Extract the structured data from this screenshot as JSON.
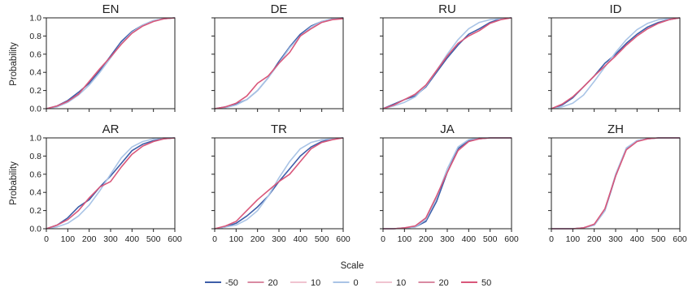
{
  "figure": {
    "xlabel": "Scale",
    "ylabel": "Probability"
  },
  "chart_data": {
    "type": "line",
    "layout": "2x4 small multiples",
    "xlim": [
      0,
      600
    ],
    "ylim": [
      0,
      1
    ],
    "xticks": [
      0,
      100,
      200,
      300,
      400,
      500,
      600
    ],
    "yticks": [
      0.0,
      0.2,
      0.4,
      0.6,
      0.8,
      1.0
    ],
    "grid": false,
    "legend_position": "bottom-center",
    "series_styles": [
      {
        "name": "-50",
        "color": "#3d5ea8"
      },
      {
        "name": "20",
        "color": "#d98aa2"
      },
      {
        "name": "10",
        "color": "#f0c4d0"
      },
      {
        "name": "0",
        "color": "#a9c4e6"
      },
      {
        "name": "10",
        "color": "#f0c4d0"
      },
      {
        "name": "20",
        "color": "#d98aa2"
      },
      {
        "name": "50",
        "color": "#d9577a"
      }
    ],
    "panels": [
      {
        "title": "EN",
        "series": [
          {
            "name": "-50",
            "x": [
              0,
              50,
              100,
              150,
              200,
              250,
              300,
              350,
              400,
              450,
              500,
              550,
              600
            ],
            "y": [
              0.0,
              0.03,
              0.09,
              0.18,
              0.28,
              0.42,
              0.58,
              0.74,
              0.85,
              0.92,
              0.97,
              0.99,
              1.0
            ]
          },
          {
            "name": "0",
            "x": [
              0,
              50,
              100,
              150,
              200,
              250,
              300,
              350,
              400,
              450,
              500,
              550,
              600
            ],
            "y": [
              0.0,
              0.02,
              0.07,
              0.15,
              0.26,
              0.4,
              0.56,
              0.72,
              0.84,
              0.92,
              0.97,
              0.99,
              1.0
            ]
          },
          {
            "name": "50",
            "x": [
              0,
              50,
              100,
              150,
              200,
              250,
              300,
              350,
              400,
              450,
              500,
              550,
              600
            ],
            "y": [
              0.0,
              0.03,
              0.08,
              0.16,
              0.3,
              0.44,
              0.57,
              0.71,
              0.83,
              0.91,
              0.96,
              0.99,
              1.0
            ]
          }
        ]
      },
      {
        "title": "DE",
        "series": [
          {
            "name": "-50",
            "x": [
              0,
              50,
              100,
              150,
              200,
              250,
              300,
              350,
              400,
              450,
              500,
              550,
              600
            ],
            "y": [
              0.0,
              0.02,
              0.05,
              0.1,
              0.2,
              0.34,
              0.52,
              0.68,
              0.82,
              0.91,
              0.96,
              0.99,
              1.0
            ]
          },
          {
            "name": "0",
            "x": [
              0,
              50,
              100,
              150,
              200,
              250,
              300,
              350,
              400,
              450,
              500,
              550,
              600
            ],
            "y": [
              0.0,
              0.01,
              0.04,
              0.1,
              0.2,
              0.34,
              0.5,
              0.67,
              0.8,
              0.9,
              0.96,
              0.99,
              1.0
            ]
          },
          {
            "name": "50",
            "x": [
              0,
              50,
              100,
              150,
              200,
              250,
              300,
              350,
              400,
              450,
              500,
              550,
              600
            ],
            "y": [
              0.0,
              0.02,
              0.06,
              0.14,
              0.28,
              0.36,
              0.5,
              0.62,
              0.8,
              0.88,
              0.95,
              0.98,
              0.99
            ]
          }
        ]
      },
      {
        "title": "RU",
        "series": [
          {
            "name": "-50",
            "x": [
              0,
              50,
              100,
              150,
              200,
              250,
              300,
              350,
              400,
              450,
              500,
              550,
              600
            ],
            "y": [
              0.0,
              0.05,
              0.1,
              0.14,
              0.24,
              0.4,
              0.56,
              0.7,
              0.82,
              0.88,
              0.95,
              0.99,
              1.0
            ]
          },
          {
            "name": "0",
            "x": [
              0,
              50,
              100,
              150,
              200,
              250,
              300,
              350,
              400,
              450,
              500,
              550,
              600
            ],
            "y": [
              0.0,
              0.03,
              0.07,
              0.13,
              0.25,
              0.42,
              0.6,
              0.76,
              0.88,
              0.95,
              0.98,
              0.99,
              1.0
            ]
          },
          {
            "name": "50",
            "x": [
              0,
              50,
              100,
              150,
              200,
              250,
              300,
              350,
              400,
              450,
              500,
              550,
              600
            ],
            "y": [
              0.0,
              0.04,
              0.1,
              0.16,
              0.26,
              0.42,
              0.58,
              0.72,
              0.8,
              0.86,
              0.94,
              0.98,
              1.0
            ]
          }
        ]
      },
      {
        "title": "ID",
        "series": [
          {
            "name": "-50",
            "x": [
              0,
              50,
              100,
              150,
              200,
              250,
              300,
              350,
              400,
              450,
              500,
              550,
              600
            ],
            "y": [
              0.0,
              0.04,
              0.12,
              0.24,
              0.36,
              0.5,
              0.6,
              0.72,
              0.82,
              0.9,
              0.95,
              0.98,
              1.0
            ]
          },
          {
            "name": "0",
            "x": [
              0,
              50,
              100,
              150,
              200,
              250,
              300,
              350,
              400,
              450,
              500,
              550,
              600
            ],
            "y": [
              0.0,
              0.02,
              0.06,
              0.15,
              0.3,
              0.46,
              0.62,
              0.76,
              0.87,
              0.94,
              0.98,
              0.99,
              1.0
            ]
          },
          {
            "name": "50",
            "x": [
              0,
              50,
              100,
              150,
              200,
              250,
              300,
              350,
              400,
              450,
              500,
              550,
              600
            ],
            "y": [
              0.0,
              0.05,
              0.13,
              0.24,
              0.36,
              0.47,
              0.58,
              0.7,
              0.8,
              0.88,
              0.94,
              0.98,
              1.0
            ]
          }
        ]
      },
      {
        "title": "AR",
        "series": [
          {
            "name": "-50",
            "x": [
              0,
              50,
              100,
              150,
              200,
              250,
              300,
              350,
              400,
              450,
              500,
              550,
              600
            ],
            "y": [
              0.0,
              0.04,
              0.12,
              0.24,
              0.32,
              0.46,
              0.58,
              0.72,
              0.86,
              0.93,
              0.97,
              0.99,
              1.0
            ]
          },
          {
            "name": "0",
            "x": [
              0,
              50,
              100,
              150,
              200,
              250,
              300,
              350,
              400,
              450,
              500,
              550,
              600
            ],
            "y": [
              0.0,
              0.02,
              0.06,
              0.14,
              0.26,
              0.42,
              0.6,
              0.78,
              0.9,
              0.96,
              0.99,
              1.0,
              1.0
            ]
          },
          {
            "name": "50",
            "x": [
              0,
              50,
              100,
              150,
              200,
              250,
              300,
              350,
              400,
              450,
              500,
              550,
              600
            ],
            "y": [
              0.0,
              0.04,
              0.1,
              0.2,
              0.34,
              0.46,
              0.52,
              0.68,
              0.82,
              0.91,
              0.96,
              0.99,
              1.0
            ]
          }
        ]
      },
      {
        "title": "TR",
        "series": [
          {
            "name": "-50",
            "x": [
              0,
              50,
              100,
              150,
              200,
              250,
              300,
              350,
              400,
              450,
              500,
              550,
              600
            ],
            "y": [
              0.0,
              0.02,
              0.06,
              0.14,
              0.24,
              0.36,
              0.52,
              0.66,
              0.8,
              0.9,
              0.96,
              0.99,
              1.0
            ]
          },
          {
            "name": "0",
            "x": [
              0,
              50,
              100,
              150,
              200,
              250,
              300,
              350,
              400,
              450,
              500,
              550,
              600
            ],
            "y": [
              0.0,
              0.02,
              0.04,
              0.1,
              0.2,
              0.36,
              0.56,
              0.74,
              0.88,
              0.95,
              0.98,
              0.99,
              1.0
            ]
          },
          {
            "name": "50",
            "x": [
              0,
              50,
              100,
              150,
              200,
              250,
              300,
              350,
              400,
              450,
              500,
              550,
              600
            ],
            "y": [
              0.0,
              0.03,
              0.08,
              0.2,
              0.32,
              0.42,
              0.52,
              0.6,
              0.74,
              0.88,
              0.95,
              0.98,
              1.0
            ]
          }
        ]
      },
      {
        "title": "JA",
        "series": [
          {
            "name": "-50",
            "x": [
              0,
              50,
              100,
              150,
              200,
              250,
              300,
              350,
              400,
              450,
              500,
              550,
              600
            ],
            "y": [
              0.0,
              0.0,
              0.01,
              0.02,
              0.08,
              0.3,
              0.62,
              0.88,
              0.97,
              0.99,
              1.0,
              1.0,
              1.0
            ]
          },
          {
            "name": "0",
            "x": [
              0,
              50,
              100,
              150,
              200,
              250,
              300,
              350,
              400,
              450,
              500,
              550,
              600
            ],
            "y": [
              0.0,
              0.0,
              0.01,
              0.02,
              0.1,
              0.34,
              0.66,
              0.9,
              0.98,
              1.0,
              1.0,
              1.0,
              1.0
            ]
          },
          {
            "name": "50",
            "x": [
              0,
              50,
              100,
              150,
              200,
              250,
              300,
              350,
              400,
              450,
              500,
              550,
              600
            ],
            "y": [
              0.0,
              0.0,
              0.01,
              0.03,
              0.12,
              0.36,
              0.62,
              0.86,
              0.96,
              0.99,
              1.0,
              1.0,
              1.0
            ]
          }
        ]
      },
      {
        "title": "ZH",
        "series": [
          {
            "name": "-50",
            "x": [
              0,
              50,
              100,
              150,
              200,
              250,
              300,
              350,
              400,
              450,
              500,
              550,
              600
            ],
            "y": [
              0.0,
              0.0,
              0.0,
              0.01,
              0.04,
              0.2,
              0.58,
              0.88,
              0.97,
              0.99,
              1.0,
              1.0,
              1.0
            ]
          },
          {
            "name": "0",
            "x": [
              0,
              50,
              100,
              150,
              200,
              250,
              300,
              350,
              400,
              450,
              500,
              550,
              600
            ],
            "y": [
              0.0,
              0.0,
              0.0,
              0.01,
              0.04,
              0.2,
              0.6,
              0.89,
              0.97,
              0.99,
              1.0,
              1.0,
              1.0
            ]
          },
          {
            "name": "50",
            "x": [
              0,
              50,
              100,
              150,
              200,
              250,
              300,
              350,
              400,
              450,
              500,
              550,
              600
            ],
            "y": [
              0.0,
              0.0,
              0.0,
              0.01,
              0.05,
              0.22,
              0.58,
              0.87,
              0.96,
              0.99,
              1.0,
              1.0,
              1.0
            ]
          }
        ]
      }
    ]
  }
}
